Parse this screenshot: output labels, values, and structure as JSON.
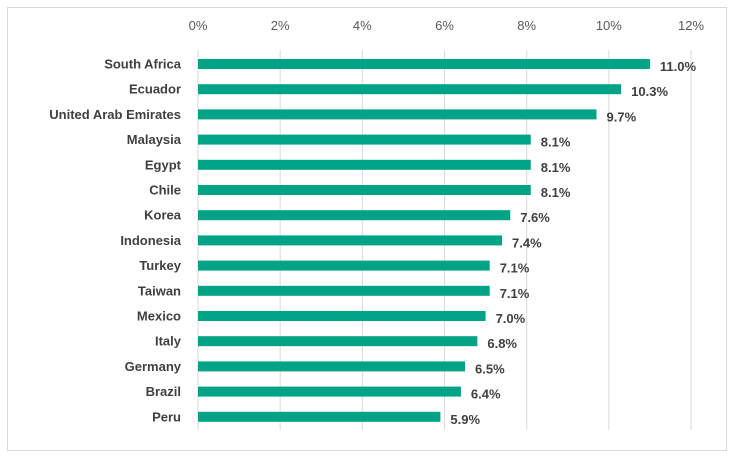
{
  "chart_data": {
    "type": "bar",
    "orientation": "horizontal",
    "categories": [
      "South Africa",
      "Ecuador",
      "United Arab Emirates",
      "Malaysia",
      "Egypt",
      "Chile",
      "Korea",
      "Indonesia",
      "Turkey",
      "Taiwan",
      "Mexico",
      "Italy",
      "Germany",
      "Brazil",
      "Peru"
    ],
    "values": [
      11.0,
      10.3,
      9.7,
      8.1,
      8.1,
      8.1,
      7.6,
      7.4,
      7.1,
      7.1,
      7.0,
      6.8,
      6.5,
      6.4,
      5.9
    ],
    "data_labels": [
      "11.0%",
      "10.3%",
      "9.7%",
      "8.1%",
      "8.1%",
      "8.1%",
      "7.6%",
      "7.4%",
      "7.1%",
      "7.1%",
      "7.0%",
      "6.8%",
      "6.5%",
      "6.4%",
      "5.9%"
    ],
    "xlim": [
      0,
      12
    ],
    "x_ticks": [
      "0%",
      "2%",
      "4%",
      "6%",
      "8%",
      "10%",
      "12%"
    ],
    "x_axis_position": "top",
    "grid": true,
    "title": "",
    "xlabel": "",
    "ylabel": "",
    "bar_color": "#00A385"
  }
}
